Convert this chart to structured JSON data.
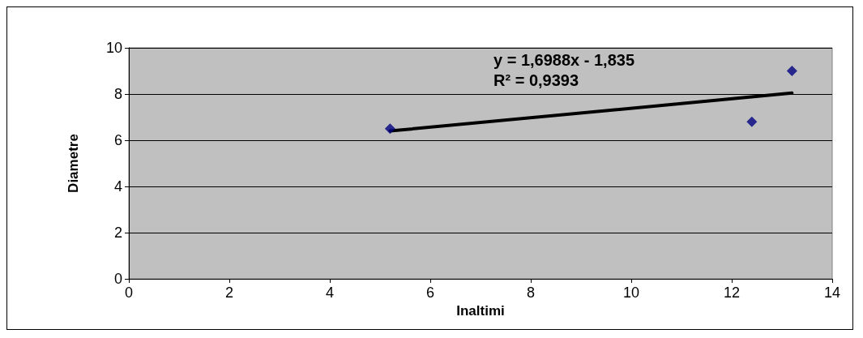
{
  "chart_data": {
    "type": "scatter",
    "xlabel": "Inaltimi",
    "ylabel": "Diametre",
    "xlim": [
      0,
      14
    ],
    "xticks": [
      0,
      2,
      4,
      6,
      8,
      10,
      12,
      14
    ],
    "ylim": [
      0,
      10
    ],
    "yticks": [
      0,
      2,
      4,
      6,
      8,
      10
    ],
    "grid": "y",
    "series": [
      {
        "color": "#000080",
        "x": [
          5.2,
          12.4,
          13.2
        ],
        "values": [
          6.5,
          6.8,
          9.0
        ],
        "marker": "diamond"
      },
      {
        "type": "line",
        "color": "#000000",
        "x": [
          5.2,
          13.2
        ],
        "values": [
          6.4,
          8.04
        ],
        "marker": "none",
        "line_style": "solid"
      }
    ],
    "annotations": [
      "y = 1,6988x - 1,835\nR² = 0,9393"
    ]
  }
}
